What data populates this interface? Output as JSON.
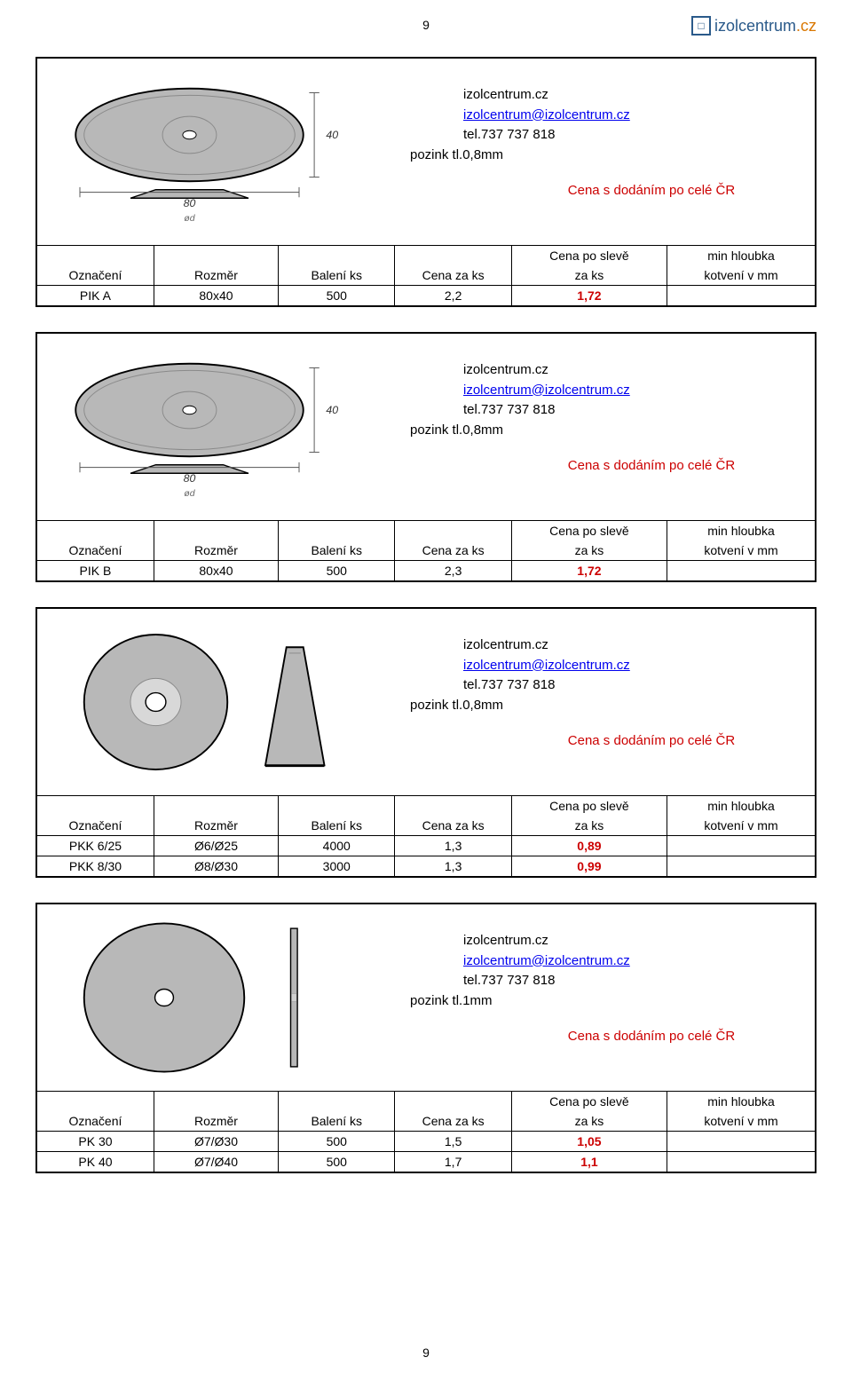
{
  "page_number": "9",
  "logo": {
    "text": "izolcentrum",
    "suffix": ".cz"
  },
  "contact": {
    "name": "izolcentrum.cz",
    "email": "izolcentrum@izolcentrum.cz",
    "phone": "tel.737 737 818"
  },
  "material_08": "pozink tl.0,8mm",
  "material_1": "pozink tl.1mm",
  "price_header": "Cena s dodáním po celé ČR",
  "table_headers": {
    "oznaceni": "Označení",
    "rozmer": "Rozměr",
    "baleni": "Balení ks",
    "cena": "Cena za ks",
    "sleve_top": "Cena po slevě",
    "sleve_bot": "za ks",
    "hloubka_top": "min hloubka",
    "hloubka_bot": "kotvení v mm"
  },
  "blocks": [
    {
      "id": "pik-a",
      "shape": "oval",
      "material_key": "material_08",
      "rows": [
        {
          "oznaceni": "PIK A",
          "rozmer": "80x40",
          "baleni": "500",
          "cena": "2,2",
          "sleve": "1,72",
          "hloubka": ""
        }
      ]
    },
    {
      "id": "pik-b",
      "shape": "oval",
      "material_key": "material_08",
      "rows": [
        {
          "oznaceni": "PIK B",
          "rozmer": "80x40",
          "baleni": "500",
          "cena": "2,3",
          "sleve": "1,72",
          "hloubka": ""
        }
      ]
    },
    {
      "id": "pkk",
      "shape": "cone-disc",
      "material_key": "material_08",
      "rows": [
        {
          "oznaceni": "PKK 6/25",
          "rozmer": "Ø6/Ø25",
          "baleni": "4000",
          "cena": "1,3",
          "sleve": "0,89",
          "hloubka": ""
        },
        {
          "oznaceni": "PKK 8/30",
          "rozmer": "Ø8/Ø30",
          "baleni": "3000",
          "cena": "1,3",
          "sleve": "0,99",
          "hloubka": ""
        }
      ]
    },
    {
      "id": "pk",
      "shape": "flat-disc",
      "material_key": "material_1",
      "rows": [
        {
          "oznaceni": "PK 30",
          "rozmer": "Ø7/Ø30",
          "baleni": "500",
          "cena": "1,5",
          "sleve": "1,05",
          "hloubka": ""
        },
        {
          "oznaceni": "PK 40",
          "rozmer": "Ø7/Ø40",
          "baleni": "500",
          "cena": "1,7",
          "sleve": "1,1",
          "hloubka": ""
        }
      ]
    }
  ],
  "svg_colors": {
    "fill": "#b8b8b8",
    "stroke": "#000000",
    "dim_line": "#555555",
    "shadow": "#8a8a8a"
  }
}
